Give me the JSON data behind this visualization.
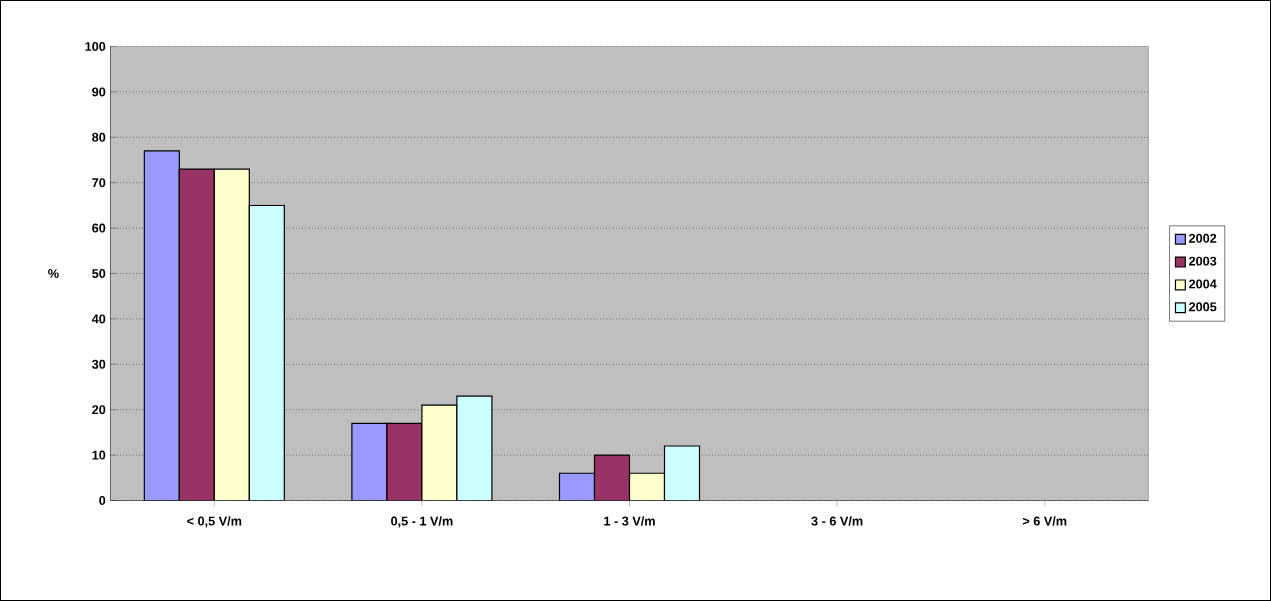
{
  "chart_data": {
    "type": "bar",
    "ylabel": "%",
    "categories": [
      "< 0,5 V/m",
      "0,5 - 1 V/m",
      "1 - 3 V/m",
      "3 - 6 V/m",
      "> 6 V/m"
    ],
    "series": [
      {
        "name": "2002",
        "color": "#9999ff",
        "values": [
          77,
          17,
          6,
          null,
          null
        ]
      },
      {
        "name": "2003",
        "color": "#993366",
        "values": [
          73,
          17,
          10,
          null,
          null
        ]
      },
      {
        "name": "2004",
        "color": "#ffffcc",
        "values": [
          73,
          21,
          6,
          null,
          null
        ]
      },
      {
        "name": "2005",
        "color": "#ccffff",
        "values": [
          65,
          23,
          12,
          null,
          null
        ]
      }
    ],
    "ylim": [
      0,
      100
    ],
    "yticks": [
      0,
      10,
      20,
      30,
      40,
      50,
      60,
      70,
      80,
      90,
      100
    ],
    "grid": "y",
    "legend": "right"
  }
}
